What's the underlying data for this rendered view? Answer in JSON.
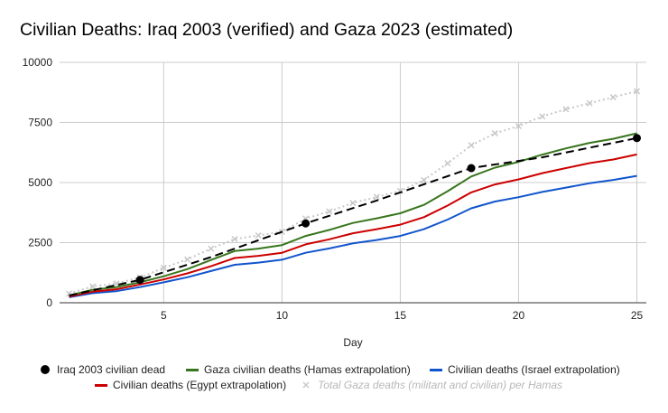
{
  "chart_data": {
    "type": "line",
    "title": "Civilian Deaths: Iraq 2003 (verified) and Gaza 2023 (estimated)",
    "xlabel": "Day",
    "ylabel": "",
    "xlim": [
      1,
      25
    ],
    "ylim": [
      0,
      10000
    ],
    "x_ticks": [
      5,
      10,
      15,
      20,
      25
    ],
    "y_ticks": [
      0,
      2500,
      5000,
      7500,
      10000
    ],
    "grid": true,
    "legend_position": "bottom",
    "series": [
      {
        "name": "Iraq 2003 civilian dead",
        "color": "#000000",
        "style": "dashed-with-markers",
        "trend_x": [
          1,
          4,
          7,
          11,
          14,
          18,
          21,
          25
        ],
        "trend_y": [
          300,
          950,
          1900,
          3300,
          4250,
          5600,
          6050,
          6850
        ],
        "marker_x": [
          4,
          11,
          18,
          25
        ],
        "marker_y": [
          950,
          3300,
          5600,
          6850
        ]
      },
      {
        "name": "Gaza civilian deaths (Hamas extrapolation)",
        "color": "#38761d",
        "style": "solid",
        "x": [
          1,
          2,
          3,
          4,
          5,
          6,
          7,
          8,
          9,
          10,
          11,
          12,
          13,
          14,
          15,
          16,
          17,
          18,
          19,
          20,
          21,
          22,
          23,
          24,
          25
        ],
        "y": [
          300,
          540,
          650,
          850,
          1100,
          1400,
          1780,
          2150,
          2250,
          2400,
          2780,
          3030,
          3320,
          3510,
          3720,
          4070,
          4640,
          5250,
          5620,
          5860,
          6160,
          6420,
          6650,
          6820,
          7050
        ]
      },
      {
        "name": "Civilian deaths (Israel extrapolation)",
        "color": "#1155cc",
        "style": "solid",
        "x": [
          1,
          2,
          3,
          4,
          5,
          6,
          7,
          8,
          9,
          10,
          11,
          12,
          13,
          14,
          15,
          16,
          17,
          18,
          19,
          20,
          21,
          22,
          23,
          24,
          25
        ],
        "y": [
          230,
          400,
          480,
          650,
          850,
          1060,
          1320,
          1580,
          1670,
          1790,
          2080,
          2260,
          2470,
          2610,
          2780,
          3060,
          3460,
          3930,
          4210,
          4390,
          4610,
          4790,
          4970,
          5110,
          5280
        ]
      },
      {
        "name": "Civilian deaths (Egypt extrapolation)",
        "color": "#cc0000",
        "style": "solid",
        "x": [
          1,
          2,
          3,
          4,
          5,
          6,
          7,
          8,
          9,
          10,
          11,
          12,
          13,
          14,
          15,
          16,
          17,
          18,
          19,
          20,
          21,
          22,
          23,
          24,
          25
        ],
        "y": [
          260,
          460,
          560,
          760,
          970,
          1220,
          1520,
          1860,
          1950,
          2080,
          2430,
          2640,
          2890,
          3060,
          3250,
          3560,
          4040,
          4590,
          4920,
          5130,
          5390,
          5600,
          5810,
          5960,
          6170
        ]
      },
      {
        "name": "Total Gaza deaths (militant and civilian) per Hamas",
        "color": "#c8c8c8",
        "style": "dotted-with-x-markers",
        "x": [
          1,
          2,
          3,
          4,
          5,
          6,
          7,
          8,
          9,
          10,
          11,
          12,
          13,
          14,
          15,
          16,
          17,
          18,
          19,
          20,
          21,
          22,
          23,
          24,
          25
        ],
        "y": [
          380,
          680,
          800,
          1050,
          1450,
          1800,
          2250,
          2650,
          2800,
          2950,
          3500,
          3800,
          4150,
          4400,
          4650,
          5100,
          5800,
          6550,
          7050,
          7350,
          7750,
          8050,
          8300,
          8550,
          8800
        ]
      }
    ]
  }
}
